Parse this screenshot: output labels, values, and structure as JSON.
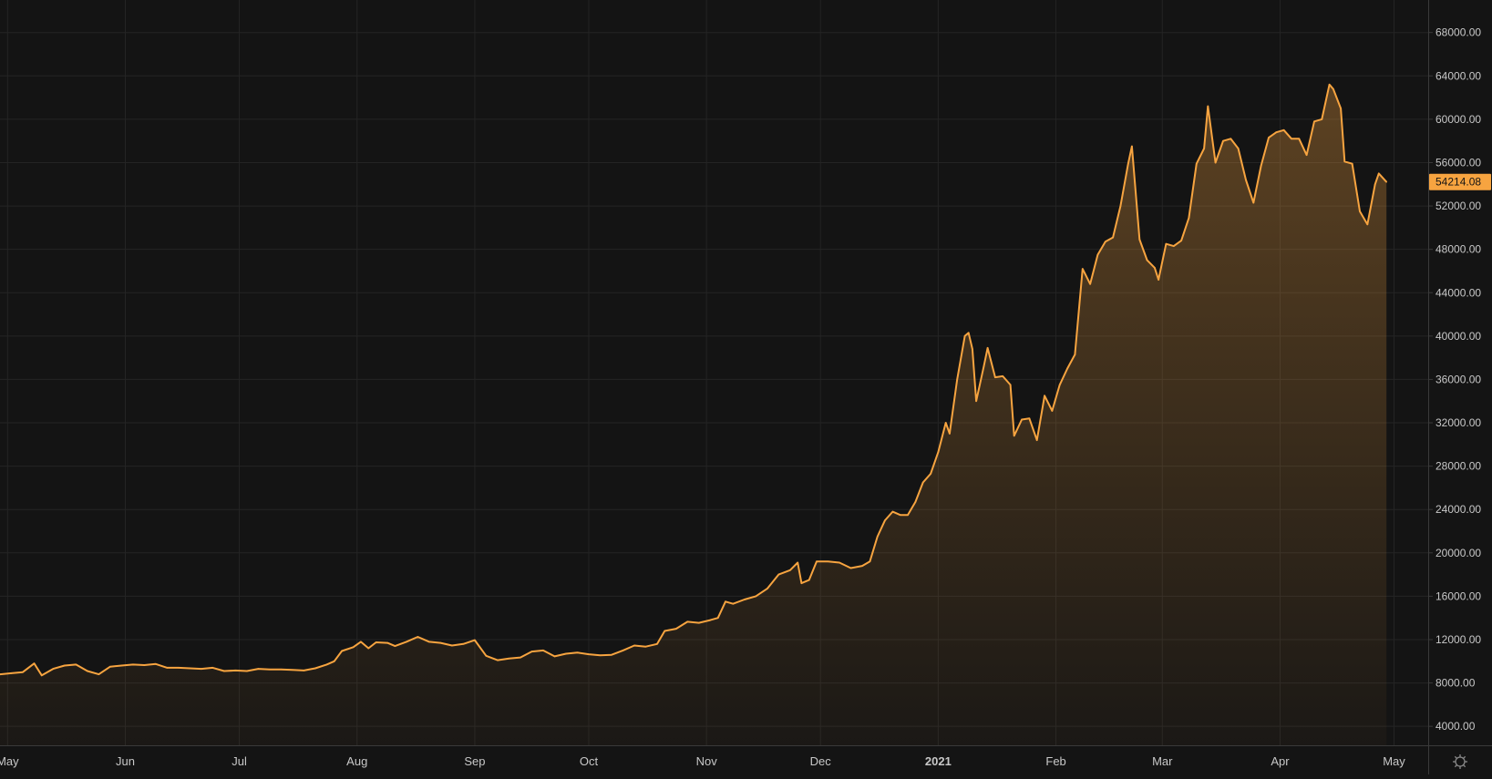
{
  "theme": {
    "background": "#141414",
    "grid_color": "#242424",
    "axis_line_color": "#3a3a3a",
    "axis_text_color": "#c8c8c8",
    "series_color": "#f7a440",
    "price_badge_text_color": "#141414",
    "settings_icon": "gear-icon"
  },
  "chart_data": {
    "type": "area",
    "title": "",
    "xlabel": "",
    "ylabel": "",
    "x_range": [
      "2020-04-29",
      "2021-05-10"
    ],
    "ylim": [
      2250,
      71000
    ],
    "y_ticks": [
      {
        "value": 4000,
        "label": "4000.00"
      },
      {
        "value": 8000,
        "label": "8000.00"
      },
      {
        "value": 12000,
        "label": "12000.00"
      },
      {
        "value": 16000,
        "label": "16000.00"
      },
      {
        "value": 20000,
        "label": "20000.00"
      },
      {
        "value": 24000,
        "label": "24000.00"
      },
      {
        "value": 28000,
        "label": "28000.00"
      },
      {
        "value": 32000,
        "label": "32000.00"
      },
      {
        "value": 36000,
        "label": "36000.00"
      },
      {
        "value": 40000,
        "label": "40000.00"
      },
      {
        "value": 44000,
        "label": "44000.00"
      },
      {
        "value": 48000,
        "label": "48000.00"
      },
      {
        "value": 52000,
        "label": "52000.00"
      },
      {
        "value": 56000,
        "label": "56000.00"
      },
      {
        "value": 60000,
        "label": "60000.00"
      },
      {
        "value": 64000,
        "label": "64000.00"
      },
      {
        "value": 68000,
        "label": "68000.00"
      }
    ],
    "x_ticks": [
      {
        "date": "2020-05-01",
        "label": "May",
        "bold": false
      },
      {
        "date": "2020-06-01",
        "label": "Jun",
        "bold": false
      },
      {
        "date": "2020-07-01",
        "label": "Jul",
        "bold": false
      },
      {
        "date": "2020-08-01",
        "label": "Aug",
        "bold": false
      },
      {
        "date": "2020-09-01",
        "label": "Sep",
        "bold": false
      },
      {
        "date": "2020-10-01",
        "label": "Oct",
        "bold": false
      },
      {
        "date": "2020-11-01",
        "label": "Nov",
        "bold": false
      },
      {
        "date": "2020-12-01",
        "label": "Dec",
        "bold": false
      },
      {
        "date": "2021-01-01",
        "label": "2021",
        "bold": true
      },
      {
        "date": "2021-02-01",
        "label": "Feb",
        "bold": false
      },
      {
        "date": "2021-03-01",
        "label": "Mar",
        "bold": false
      },
      {
        "date": "2021-04-01",
        "label": "Apr",
        "bold": false
      },
      {
        "date": "2021-05-01",
        "label": "May",
        "bold": false
      }
    ],
    "last_price": {
      "value": 54214.08,
      "label": "54214.08"
    },
    "series": [
      {
        "color": "#f7a440",
        "points": [
          [
            "2020-04-29",
            8800
          ],
          [
            "2020-05-02",
            8900
          ],
          [
            "2020-05-05",
            9000
          ],
          [
            "2020-05-08",
            9800
          ],
          [
            "2020-05-10",
            8700
          ],
          [
            "2020-05-13",
            9300
          ],
          [
            "2020-05-16",
            9600
          ],
          [
            "2020-05-19",
            9700
          ],
          [
            "2020-05-22",
            9100
          ],
          [
            "2020-05-25",
            8800
          ],
          [
            "2020-05-28",
            9500
          ],
          [
            "2020-05-31",
            9600
          ],
          [
            "2020-06-03",
            9700
          ],
          [
            "2020-06-06",
            9650
          ],
          [
            "2020-06-09",
            9750
          ],
          [
            "2020-06-12",
            9400
          ],
          [
            "2020-06-15",
            9400
          ],
          [
            "2020-06-18",
            9350
          ],
          [
            "2020-06-21",
            9300
          ],
          [
            "2020-06-24",
            9400
          ],
          [
            "2020-06-27",
            9100
          ],
          [
            "2020-06-30",
            9150
          ],
          [
            "2020-07-03",
            9100
          ],
          [
            "2020-07-06",
            9300
          ],
          [
            "2020-07-09",
            9250
          ],
          [
            "2020-07-12",
            9250
          ],
          [
            "2020-07-15",
            9200
          ],
          [
            "2020-07-18",
            9150
          ],
          [
            "2020-07-21",
            9350
          ],
          [
            "2020-07-24",
            9700
          ],
          [
            "2020-07-26",
            10000
          ],
          [
            "2020-07-28",
            10950
          ],
          [
            "2020-07-31",
            11300
          ],
          [
            "2020-08-02",
            11800
          ],
          [
            "2020-08-04",
            11200
          ],
          [
            "2020-08-06",
            11750
          ],
          [
            "2020-08-09",
            11700
          ],
          [
            "2020-08-11",
            11400
          ],
          [
            "2020-08-14",
            11800
          ],
          [
            "2020-08-17",
            12250
          ],
          [
            "2020-08-20",
            11800
          ],
          [
            "2020-08-23",
            11700
          ],
          [
            "2020-08-26",
            11450
          ],
          [
            "2020-08-29",
            11600
          ],
          [
            "2020-09-01",
            11950
          ],
          [
            "2020-09-04",
            10500
          ],
          [
            "2020-09-07",
            10100
          ],
          [
            "2020-09-10",
            10250
          ],
          [
            "2020-09-13",
            10350
          ],
          [
            "2020-09-16",
            10900
          ],
          [
            "2020-09-19",
            11000
          ],
          [
            "2020-09-22",
            10450
          ],
          [
            "2020-09-25",
            10700
          ],
          [
            "2020-09-28",
            10800
          ],
          [
            "2020-10-01",
            10650
          ],
          [
            "2020-10-04",
            10550
          ],
          [
            "2020-10-07",
            10600
          ],
          [
            "2020-10-10",
            11000
          ],
          [
            "2020-10-13",
            11450
          ],
          [
            "2020-10-16",
            11350
          ],
          [
            "2020-10-19",
            11600
          ],
          [
            "2020-10-21",
            12800
          ],
          [
            "2020-10-24",
            13000
          ],
          [
            "2020-10-27",
            13650
          ],
          [
            "2020-10-30",
            13550
          ],
          [
            "2020-11-02",
            13800
          ],
          [
            "2020-11-04",
            14000
          ],
          [
            "2020-11-06",
            15500
          ],
          [
            "2020-11-08",
            15300
          ],
          [
            "2020-11-11",
            15700
          ],
          [
            "2020-11-14",
            16000
          ],
          [
            "2020-11-17",
            16700
          ],
          [
            "2020-11-20",
            18000
          ],
          [
            "2020-11-23",
            18400
          ],
          [
            "2020-11-25",
            19100
          ],
          [
            "2020-11-26",
            17200
          ],
          [
            "2020-11-28",
            17500
          ],
          [
            "2020-11-30",
            19200
          ],
          [
            "2020-12-03",
            19200
          ],
          [
            "2020-12-06",
            19100
          ],
          [
            "2020-12-09",
            18600
          ],
          [
            "2020-12-12",
            18800
          ],
          [
            "2020-12-14",
            19200
          ],
          [
            "2020-12-16",
            21500
          ],
          [
            "2020-12-18",
            23000
          ],
          [
            "2020-12-20",
            23800
          ],
          [
            "2020-12-22",
            23500
          ],
          [
            "2020-12-24",
            23500
          ],
          [
            "2020-12-26",
            24700
          ],
          [
            "2020-12-28",
            26500
          ],
          [
            "2020-12-30",
            27300
          ],
          [
            "2021-01-01",
            29300
          ],
          [
            "2021-01-03",
            32000
          ],
          [
            "2021-01-04",
            31000
          ],
          [
            "2021-01-06",
            36000
          ],
          [
            "2021-01-08",
            40000
          ],
          [
            "2021-01-09",
            40300
          ],
          [
            "2021-01-10",
            38800
          ],
          [
            "2021-01-11",
            34000
          ],
          [
            "2021-01-13",
            37200
          ],
          [
            "2021-01-14",
            38900
          ],
          [
            "2021-01-16",
            36200
          ],
          [
            "2021-01-18",
            36300
          ],
          [
            "2021-01-20",
            35500
          ],
          [
            "2021-01-21",
            30800
          ],
          [
            "2021-01-23",
            32300
          ],
          [
            "2021-01-25",
            32400
          ],
          [
            "2021-01-27",
            30400
          ],
          [
            "2021-01-29",
            34500
          ],
          [
            "2021-01-31",
            33100
          ],
          [
            "2021-02-02",
            35500
          ],
          [
            "2021-02-04",
            37000
          ],
          [
            "2021-02-06",
            38300
          ],
          [
            "2021-02-08",
            46200
          ],
          [
            "2021-02-10",
            44800
          ],
          [
            "2021-02-12",
            47500
          ],
          [
            "2021-02-14",
            48700
          ],
          [
            "2021-02-16",
            49100
          ],
          [
            "2021-02-18",
            52000
          ],
          [
            "2021-02-20",
            55900
          ],
          [
            "2021-02-21",
            57500
          ],
          [
            "2021-02-23",
            48900
          ],
          [
            "2021-02-25",
            47000
          ],
          [
            "2021-02-27",
            46300
          ],
          [
            "2021-02-28",
            45200
          ],
          [
            "2021-03-02",
            48500
          ],
          [
            "2021-03-04",
            48300
          ],
          [
            "2021-03-06",
            48800
          ],
          [
            "2021-03-08",
            50900
          ],
          [
            "2021-03-10",
            55900
          ],
          [
            "2021-03-12",
            57300
          ],
          [
            "2021-03-13",
            61200
          ],
          [
            "2021-03-15",
            56000
          ],
          [
            "2021-03-17",
            58000
          ],
          [
            "2021-03-19",
            58200
          ],
          [
            "2021-03-21",
            57300
          ],
          [
            "2021-03-23",
            54400
          ],
          [
            "2021-03-25",
            52300
          ],
          [
            "2021-03-27",
            55700
          ],
          [
            "2021-03-29",
            58300
          ],
          [
            "2021-03-31",
            58800
          ],
          [
            "2021-04-02",
            59000
          ],
          [
            "2021-04-04",
            58200
          ],
          [
            "2021-04-06",
            58200
          ],
          [
            "2021-04-08",
            56700
          ],
          [
            "2021-04-10",
            59800
          ],
          [
            "2021-04-12",
            60000
          ],
          [
            "2021-04-14",
            63200
          ],
          [
            "2021-04-15",
            62800
          ],
          [
            "2021-04-17",
            61000
          ],
          [
            "2021-04-18",
            56100
          ],
          [
            "2021-04-20",
            55900
          ],
          [
            "2021-04-22",
            51500
          ],
          [
            "2021-04-24",
            50300
          ],
          [
            "2021-04-26",
            54000
          ],
          [
            "2021-04-27",
            55000
          ],
          [
            "2021-04-29",
            54214.08
          ]
        ]
      }
    ]
  }
}
